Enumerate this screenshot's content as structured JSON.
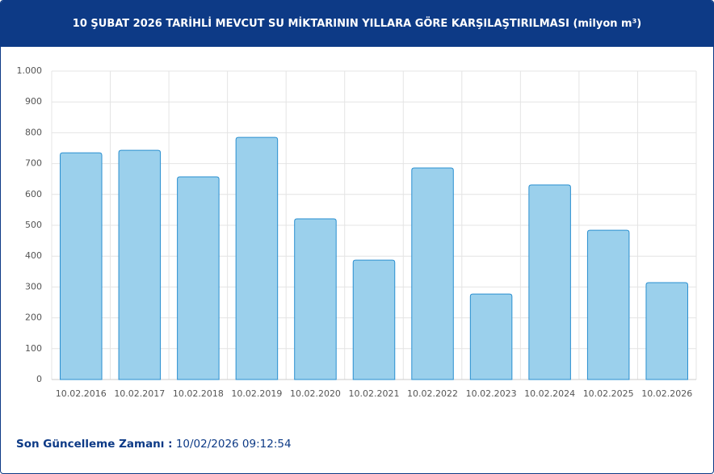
{
  "chart_data": {
    "type": "bar",
    "title": "10 ŞUBAT 2026 TARİHLİ MEVCUT SU MİKTARININ YILLARA GÖRE KARŞILAŞTIRILMASI (milyon m³)",
    "categories": [
      "10.02.2016",
      "10.02.2017",
      "10.02.2018",
      "10.02.2019",
      "10.02.2020",
      "10.02.2021",
      "10.02.2022",
      "10.02.2023",
      "10.02.2024",
      "10.02.2025",
      "10.02.2026"
    ],
    "values": [
      735,
      743,
      657,
      785,
      521,
      387,
      686,
      277,
      631,
      484,
      314
    ],
    "color": "#9bd0ec",
    "border_color": "#2a8fd0",
    "ylim": [
      0,
      1000
    ],
    "yticks": [
      0,
      100,
      200,
      300,
      400,
      500,
      600,
      700,
      800,
      900,
      {
        "value": 1000,
        "label": "1.000"
      }
    ],
    "grid": true
  },
  "footer": {
    "label": "Son Güncelleme Zamanı :",
    "value": "10/02/2026 09:12:54"
  }
}
